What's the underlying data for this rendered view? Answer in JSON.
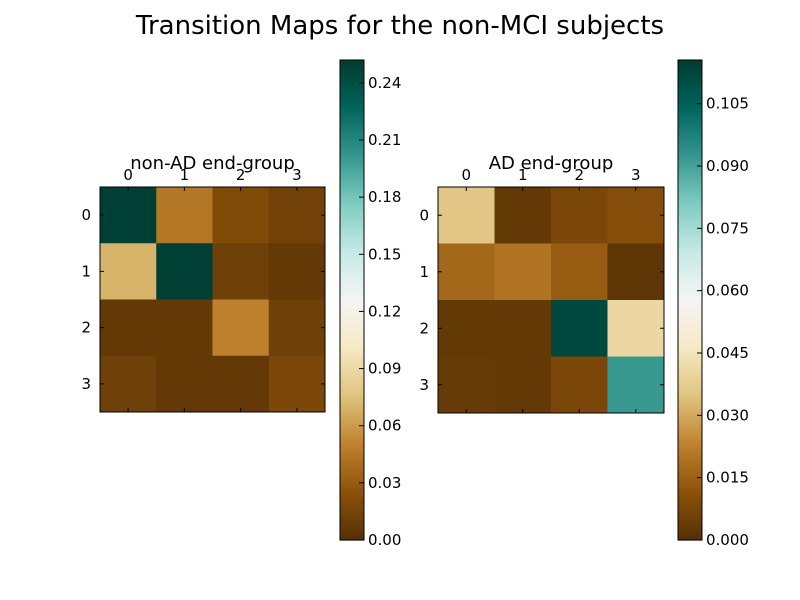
{
  "figure_title": "Transition Maps for the non-MCI subjects",
  "chart_data": [
    {
      "type": "heatmap",
      "title": "non-AD end-group",
      "x_ticks": [
        "0",
        "1",
        "2",
        "3"
      ],
      "y_ticks": [
        "0",
        "1",
        "2",
        "3"
      ],
      "values": [
        [
          0.25,
          0.045,
          0.02,
          0.013
        ],
        [
          0.07,
          0.25,
          0.012,
          0.007
        ],
        [
          0.007,
          0.008,
          0.05,
          0.012
        ],
        [
          0.012,
          0.007,
          0.007,
          0.018
        ]
      ],
      "colorbar": {
        "min": 0.0,
        "max": 0.252,
        "ticks": [
          0.0,
          0.03,
          0.06,
          0.09,
          0.12,
          0.15,
          0.18,
          0.21,
          0.24
        ],
        "tick_labels": [
          "0.00",
          "0.03",
          "0.06",
          "0.09",
          "0.12",
          "0.15",
          "0.18",
          "0.21",
          "0.24"
        ]
      },
      "colormap": "BrBG"
    },
    {
      "type": "heatmap",
      "title": "AD end-group",
      "x_ticks": [
        "0",
        "1",
        "2",
        "3"
      ],
      "y_ticks": [
        "0",
        "1",
        "2",
        "3"
      ],
      "values": [
        [
          0.036,
          0.003,
          0.008,
          0.01
        ],
        [
          0.017,
          0.02,
          0.014,
          0.002
        ],
        [
          0.003,
          0.003,
          0.112,
          0.041
        ],
        [
          0.004,
          0.003,
          0.008,
          0.092
        ]
      ],
      "colorbar": {
        "min": 0.0,
        "max": 0.1155,
        "ticks": [
          0.0,
          0.015,
          0.03,
          0.045,
          0.06,
          0.075,
          0.09,
          0.105
        ],
        "tick_labels": [
          "0.000",
          "0.015",
          "0.030",
          "0.045",
          "0.060",
          "0.075",
          "0.090",
          "0.105"
        ]
      },
      "colormap": "BrBG"
    }
  ]
}
